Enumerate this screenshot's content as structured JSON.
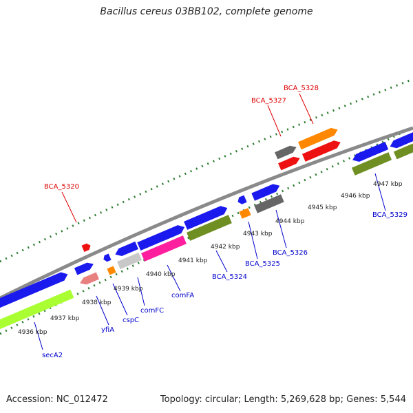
{
  "title": "Bacillus cereus 03BB102, complete genome",
  "accession": "Accession: NC_012472",
  "summary": "Topology: circular; Length: 5,269,628 bp; Genes: 5,544",
  "colors": {
    "backbone": "#8a8a8a",
    "tick_major": "#2e7d32",
    "label_forward": "#dd0000",
    "label_reverse": "#0000cc",
    "cds_blue": "#1a1aee",
    "cds_red": "#ee1111",
    "cds_orange": "#ff8800",
    "cds_grey": "#666666",
    "cds_light_grey": "#c8c8c8",
    "cds_pink": "#ff1f9e",
    "cds_olive": "#6f8f23",
    "cds_lime": "#aaff33",
    "cds_salmon": "#e88080"
  },
  "scale_labels": [
    "4936 kbp",
    "4937 kbp",
    "4938 kbp",
    "4939 kbp",
    "4940 kbp",
    "4941 kbp",
    "4942 kbp",
    "4943 kbp",
    "4944 kbp",
    "4945 kbp",
    "4946 kbp",
    "4947 kbp"
  ],
  "gene_labels_forward": [
    "BCA_5320",
    "BCA_5327",
    "BCA_5328"
  ],
  "gene_labels_reverse": [
    "secA2",
    "yfiA",
    "cspC",
    "comFC",
    "comFA",
    "BCA_5324",
    "BCA_5325",
    "BCA_5326",
    "BCA_5329"
  ]
}
